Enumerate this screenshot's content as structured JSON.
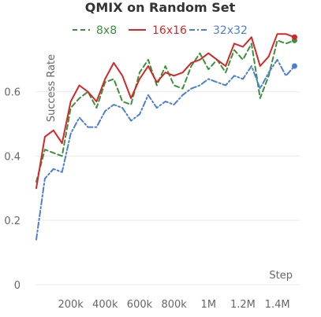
{
  "chart_data": {
    "type": "line",
    "title": "QMIX on Random Set",
    "xlabel": "Step",
    "ylabel": "Success Rate",
    "xlim": [
      0,
      1530000
    ],
    "ylim": [
      -0.02,
      0.8
    ],
    "x_ticks": [
      200000,
      400000,
      600000,
      800000,
      1000000,
      1200000,
      1400000
    ],
    "x_tick_labels": [
      "200k",
      "400k",
      "600k",
      "800k",
      "1M",
      "1.2M",
      "1.4M"
    ],
    "y_ticks": [
      0,
      0.2,
      0.4,
      0.6
    ],
    "y_tick_labels": [
      "0",
      "0.2",
      "0.4",
      "0.6"
    ],
    "grid": true,
    "legend": "top",
    "x": [
      0,
      50000,
      100000,
      150000,
      200000,
      250000,
      300000,
      350000,
      400000,
      450000,
      500000,
      550000,
      600000,
      650000,
      700000,
      750000,
      800000,
      850000,
      900000,
      950000,
      1000000,
      1050000,
      1100000,
      1150000,
      1200000,
      1250000,
      1300000,
      1350000,
      1400000,
      1450000,
      1500000
    ],
    "series": [
      {
        "name": "8x8",
        "color": "#3a923a",
        "dash": "dashed",
        "values": [
          0.32,
          0.42,
          0.41,
          0.4,
          0.55,
          0.58,
          0.6,
          0.55,
          0.63,
          0.64,
          0.57,
          0.56,
          0.66,
          0.7,
          0.62,
          0.68,
          0.62,
          0.61,
          0.68,
          0.72,
          0.67,
          0.7,
          0.66,
          0.73,
          0.7,
          0.75,
          0.58,
          0.65,
          0.76,
          0.75,
          0.76
        ]
      },
      {
        "name": "16x16",
        "color": "#d62728",
        "dash": "solid",
        "values": [
          0.3,
          0.46,
          0.48,
          0.44,
          0.57,
          0.62,
          0.6,
          0.57,
          0.64,
          0.69,
          0.65,
          0.58,
          0.64,
          0.68,
          0.63,
          0.66,
          0.65,
          0.66,
          0.69,
          0.7,
          0.72,
          0.7,
          0.68,
          0.75,
          0.74,
          0.77,
          0.68,
          0.71,
          0.78,
          0.78,
          0.77
        ]
      },
      {
        "name": "32x32",
        "color": "#4c7fd4",
        "dash": "dashdot",
        "values": [
          0.14,
          0.33,
          0.36,
          0.35,
          0.47,
          0.52,
          0.49,
          0.49,
          0.54,
          0.56,
          0.55,
          0.51,
          0.53,
          0.59,
          0.55,
          0.57,
          0.56,
          0.59,
          0.61,
          0.62,
          0.64,
          0.63,
          0.62,
          0.65,
          0.64,
          0.68,
          0.61,
          0.66,
          0.7,
          0.65,
          0.68
        ]
      }
    ]
  }
}
